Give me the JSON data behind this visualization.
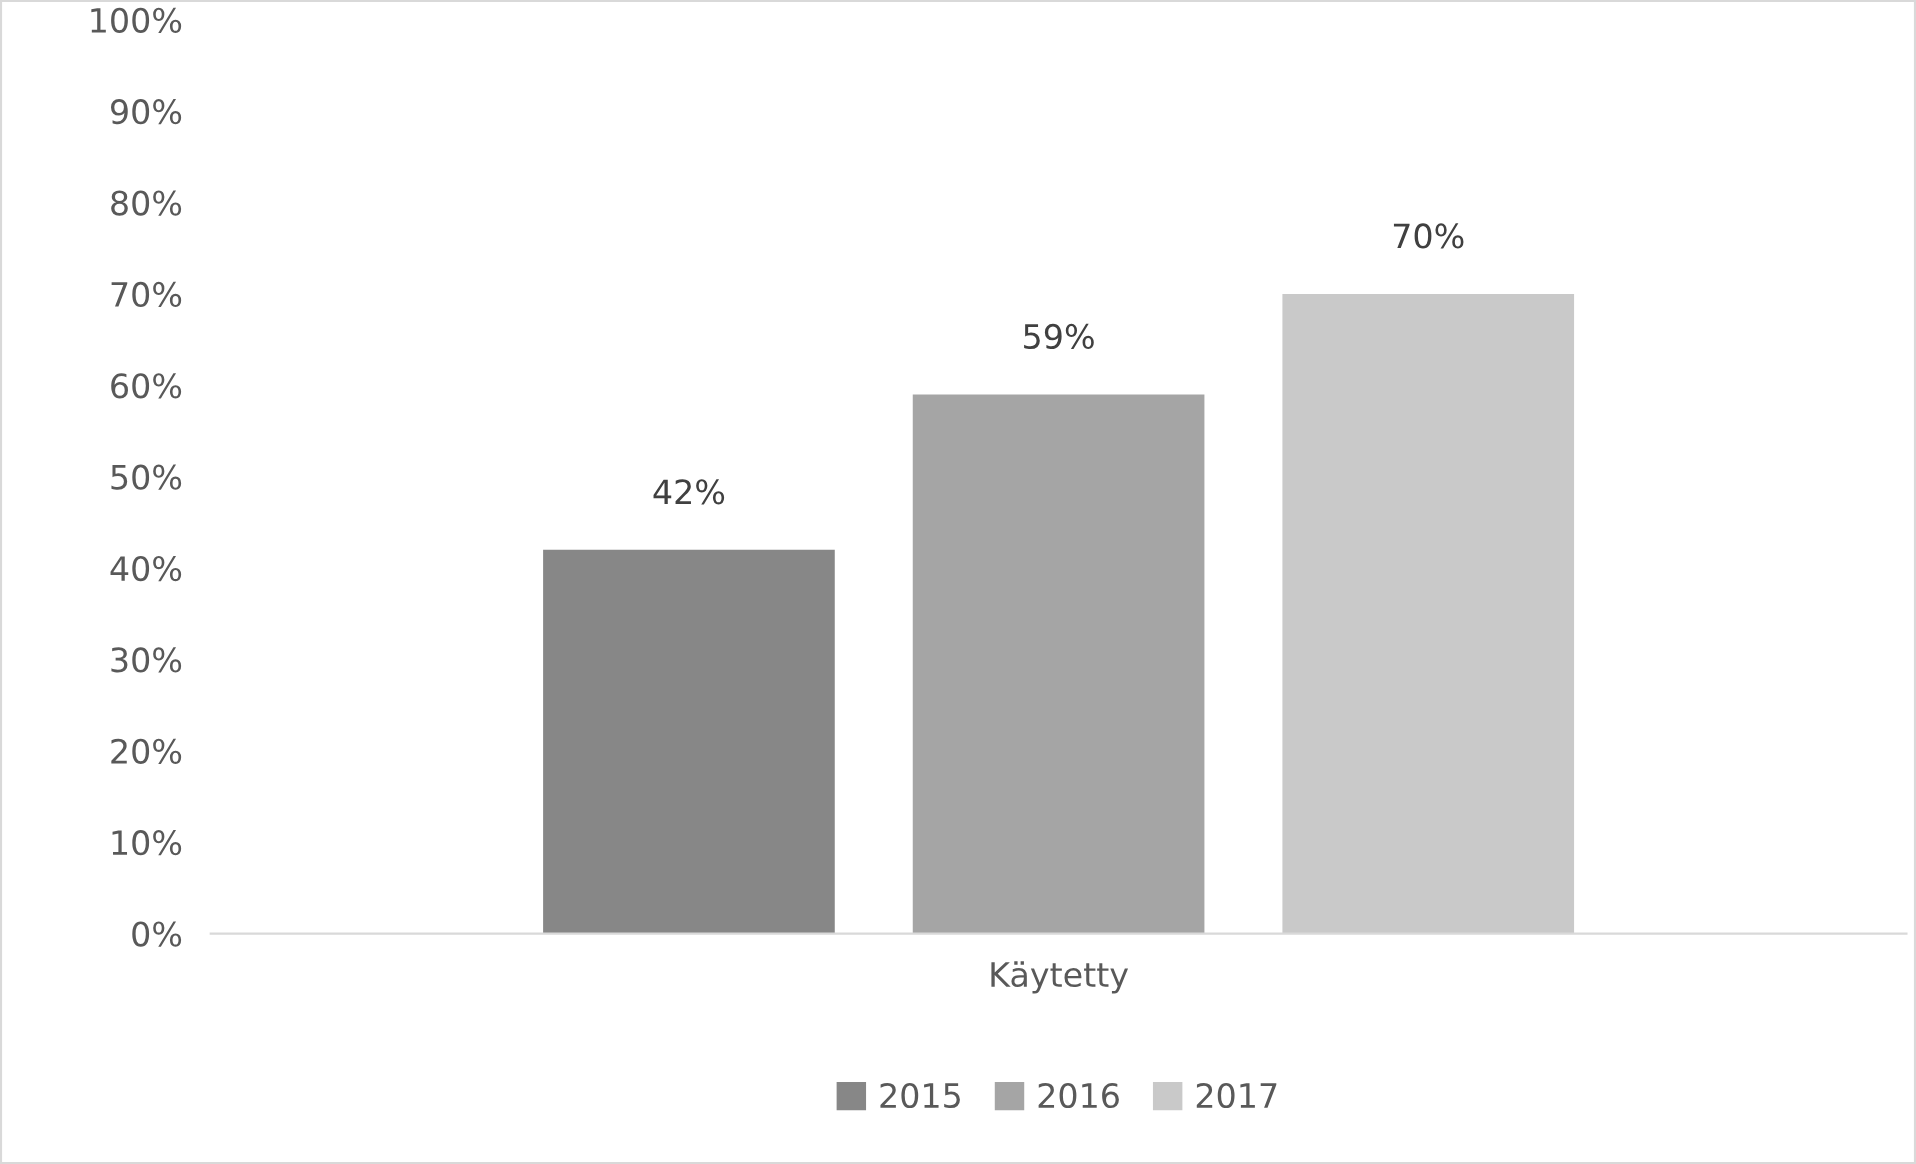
{
  "chart_data": {
    "type": "bar",
    "categories": [
      "Käytetty"
    ],
    "series": [
      {
        "name": "2015",
        "color": "#878787",
        "values": [
          42
        ],
        "value_labels": [
          "42%"
        ]
      },
      {
        "name": "2016",
        "color": "#a5a5a5",
        "values": [
          59
        ],
        "value_labels": [
          "59%"
        ]
      },
      {
        "name": "2017",
        "color": "#c9c9c9",
        "values": [
          70
        ],
        "value_labels": [
          "70%"
        ]
      }
    ],
    "ylim": [
      0,
      100
    ],
    "yticks": [
      {
        "value": 0,
        "label": "0%"
      },
      {
        "value": 10,
        "label": "10%"
      },
      {
        "value": 20,
        "label": "20%"
      },
      {
        "value": 30,
        "label": "30%"
      },
      {
        "value": 40,
        "label": "40%"
      },
      {
        "value": 50,
        "label": "50%"
      },
      {
        "value": 60,
        "label": "60%"
      },
      {
        "value": 70,
        "label": "70%"
      },
      {
        "value": 80,
        "label": "80%"
      },
      {
        "value": 90,
        "label": "90%"
      },
      {
        "value": 100,
        "label": "100%"
      }
    ],
    "grid": false,
    "legend": "bottom"
  }
}
